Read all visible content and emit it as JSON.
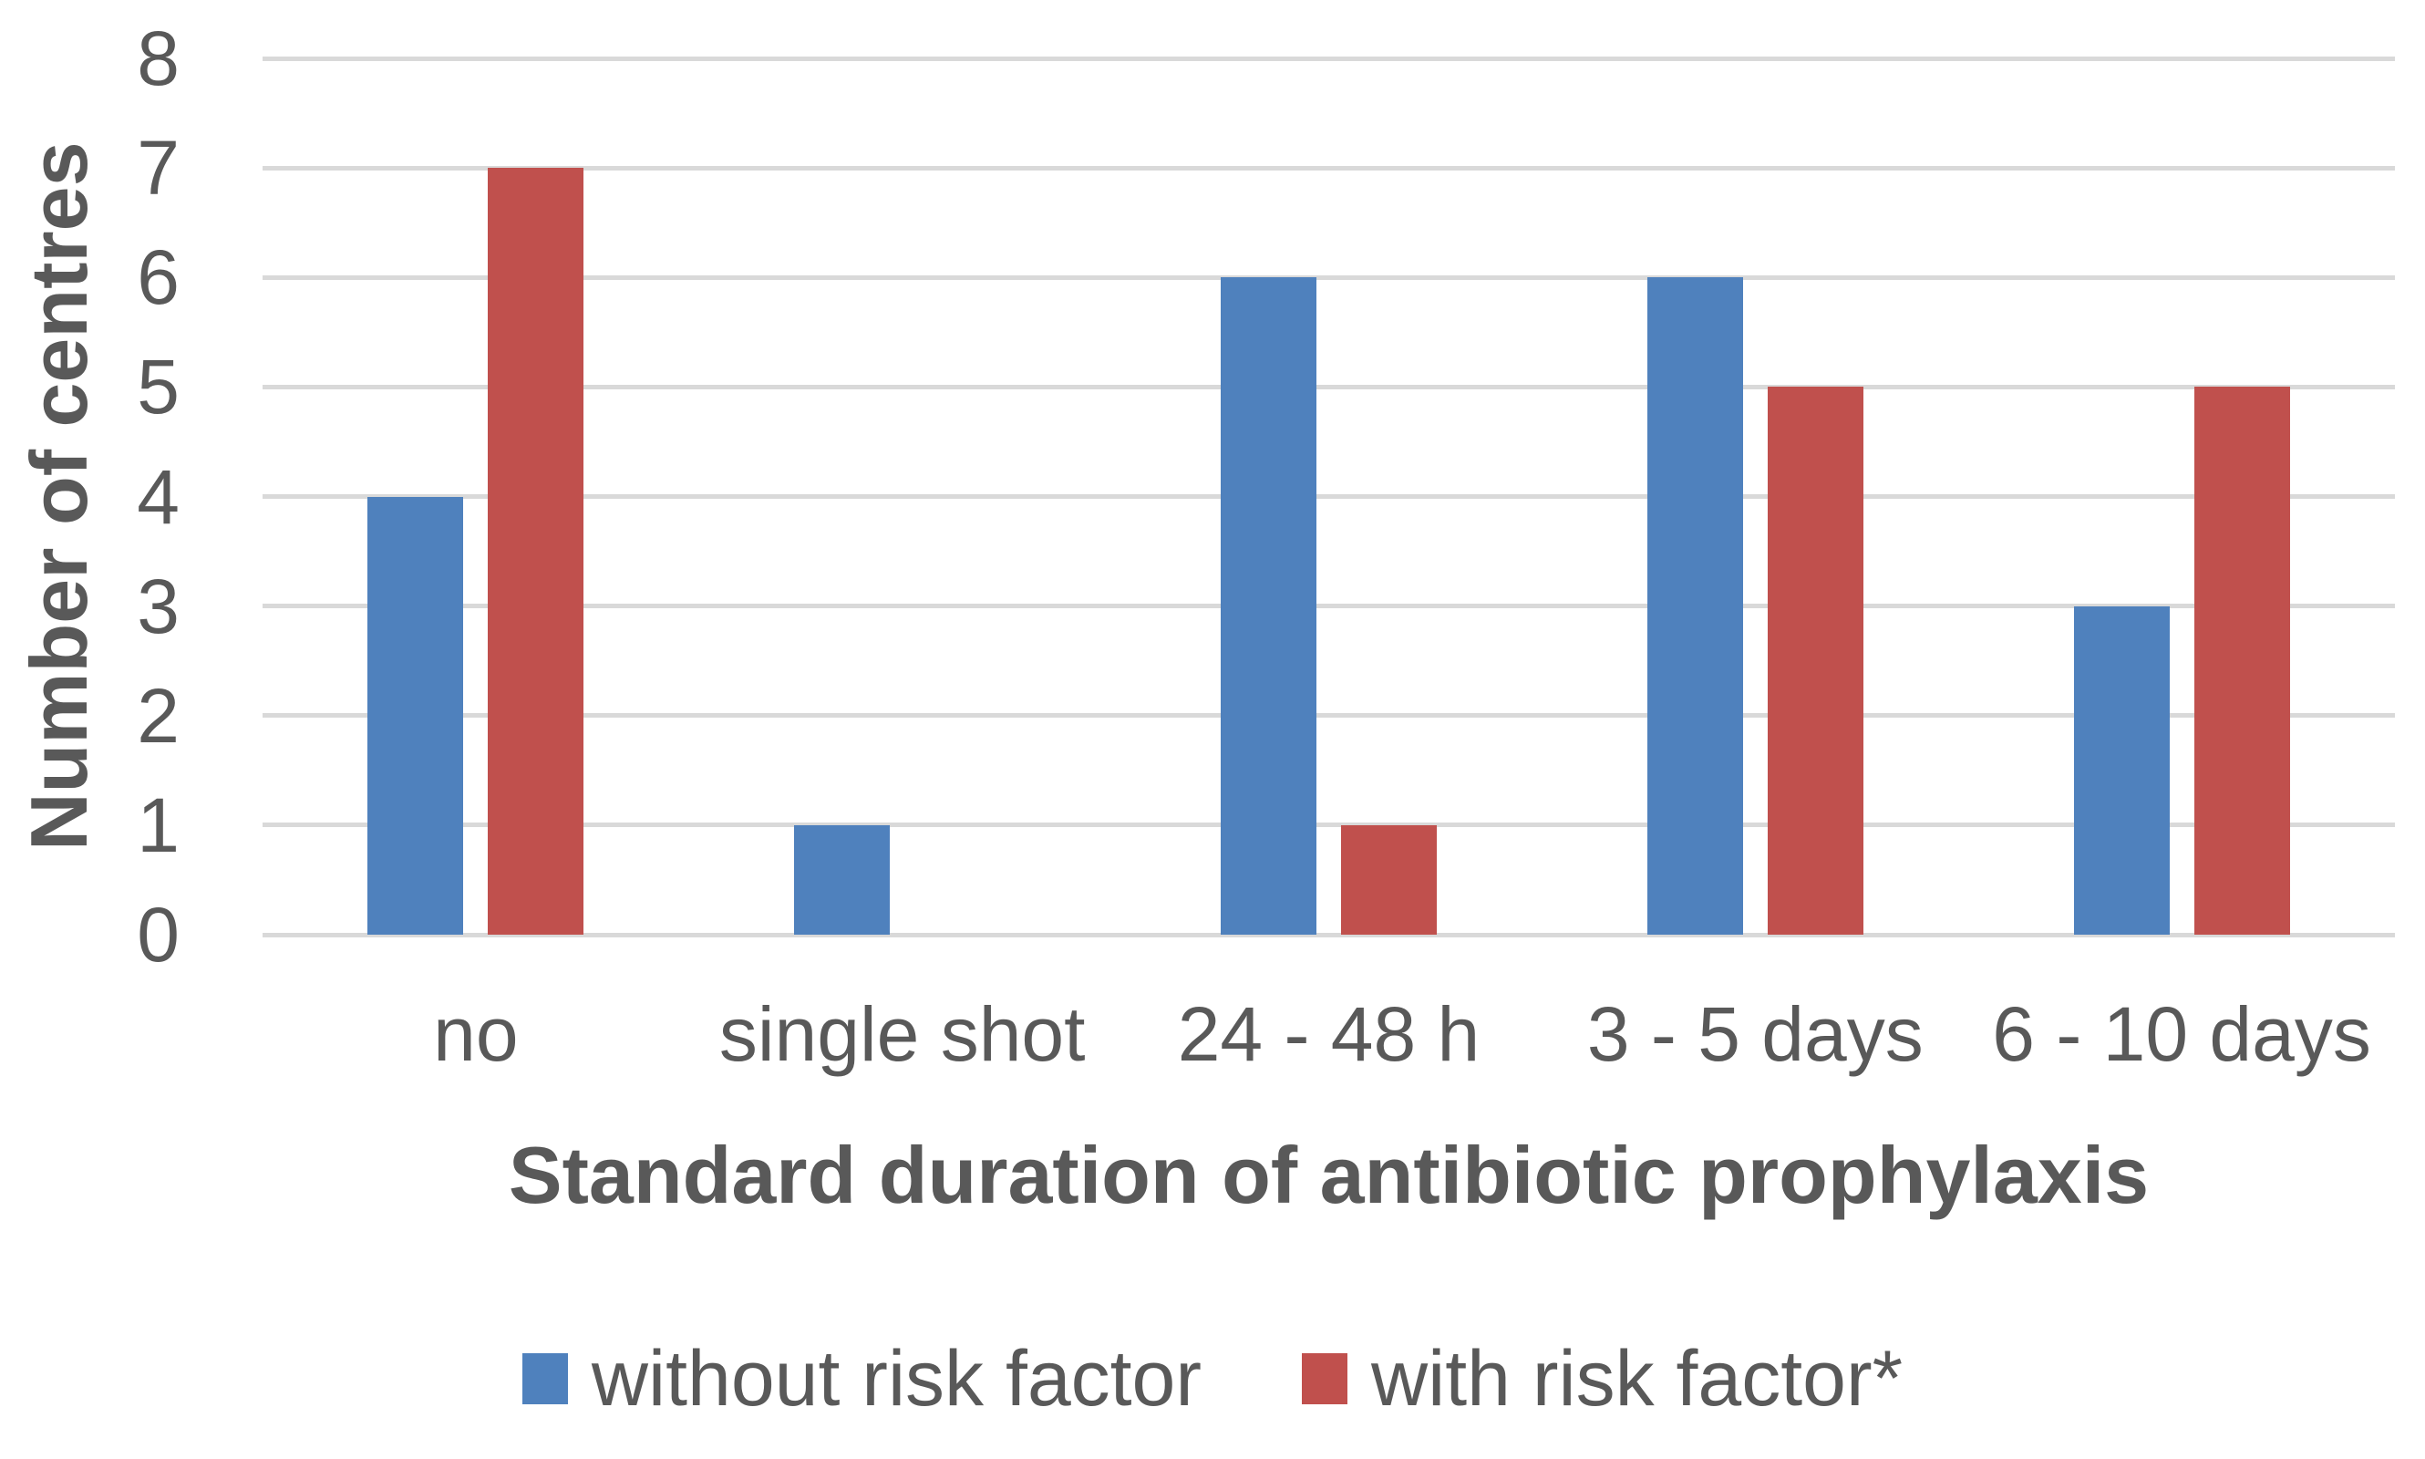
{
  "chart_data": {
    "type": "bar",
    "categories": [
      "no",
      "single shot",
      "24 - 48 h",
      "3 - 5 days",
      "6 - 10 days"
    ],
    "series": [
      {
        "name": "without risk factor",
        "color": "#4F81BD",
        "values": [
          4,
          1,
          6,
          6,
          3
        ]
      },
      {
        "name": "with risk factor*",
        "color": "#C0504D",
        "values": [
          7,
          0,
          1,
          5,
          5
        ]
      }
    ],
    "title": "",
    "xlabel": "Standard duration of antibiotic prophylaxis",
    "ylabel": "Number of centres",
    "ylim": [
      0,
      8
    ],
    "yticks": [
      0,
      1,
      2,
      3,
      4,
      5,
      6,
      7,
      8
    ],
    "grid": true,
    "gridline_color": "#D9D9D9",
    "text_color": "#595959",
    "legend_position": "bottom"
  }
}
